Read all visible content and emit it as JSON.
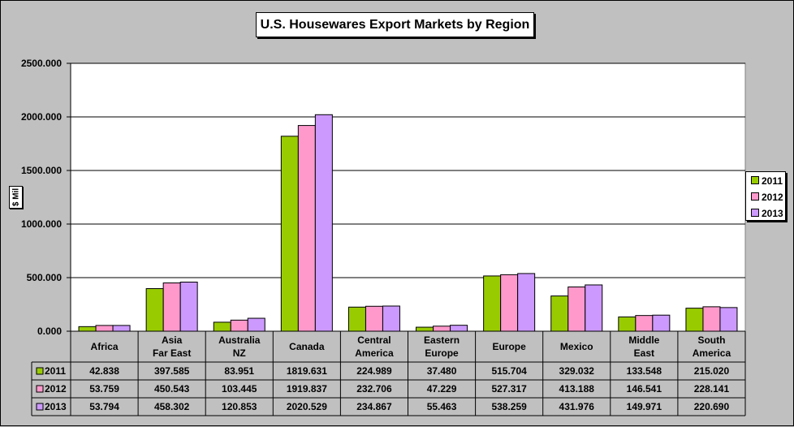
{
  "chart_data": {
    "type": "bar",
    "title": "U.S. Housewares Export Markets by Region",
    "ylabel": "$ Mil",
    "xlabel": "",
    "ylim": [
      0,
      2500
    ],
    "y_ticks": [
      "0.000",
      "500.000",
      "1000.000",
      "1500.000",
      "2000.000",
      "2500.000"
    ],
    "y_tick_values": [
      0,
      500,
      1000,
      1500,
      2000,
      2500
    ],
    "grid": true,
    "legend_position": "right",
    "categories": [
      [
        "Africa"
      ],
      [
        "Asia",
        "Far East"
      ],
      [
        "Australia",
        "NZ"
      ],
      [
        "Canada"
      ],
      [
        "Central",
        "America"
      ],
      [
        "Eastern",
        "Europe"
      ],
      [
        "Europe"
      ],
      [
        "Mexico"
      ],
      [
        "Middle",
        "East"
      ],
      [
        "South",
        "America"
      ]
    ],
    "series": [
      {
        "name": "2011",
        "color": "#99cc00",
        "values": [
          42.838,
          397.585,
          83.951,
          1819.631,
          224.989,
          37.48,
          515.704,
          329.032,
          133.548,
          215.02
        ],
        "labels": [
          "42.838",
          "397.585",
          "83.951",
          "1819.631",
          "224.989",
          "37.480",
          "515.704",
          "329.032",
          "133.548",
          "215.020"
        ]
      },
      {
        "name": "2012",
        "color": "#ff99cc",
        "values": [
          53.759,
          450.543,
          103.445,
          1919.837,
          232.706,
          47.229,
          527.317,
          413.188,
          146.541,
          228.141
        ],
        "labels": [
          "53.759",
          "450.543",
          "103.445",
          "1919.837",
          "232.706",
          "47.229",
          "527.317",
          "413.188",
          "146.541",
          "228.141"
        ]
      },
      {
        "name": "2013",
        "color": "#cc99ff",
        "values": [
          53.794,
          458.302,
          120.853,
          2020.529,
          234.867,
          55.463,
          538.259,
          431.976,
          149.971,
          220.69
        ],
        "labels": [
          "53.794",
          "458.302",
          "120.853",
          "2020.529",
          "234.867",
          "55.463",
          "538.259",
          "431.976",
          "149.971",
          "220.690"
        ]
      }
    ]
  }
}
